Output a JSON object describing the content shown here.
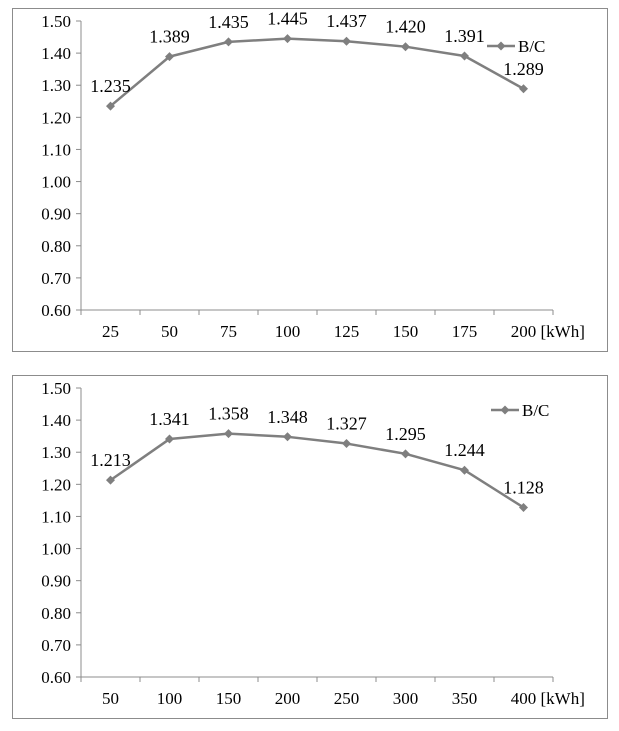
{
  "chart_data": [
    {
      "type": "line",
      "x": [
        "25",
        "50",
        "75",
        "100",
        "125",
        "150",
        "175",
        "200"
      ],
      "x_unit": "[kWh]",
      "series": [
        {
          "name": "B/C",
          "values": [
            1.235,
            1.389,
            1.435,
            1.445,
            1.437,
            1.42,
            1.391,
            1.289
          ],
          "labels": [
            "1.235",
            "1.389",
            "1.435",
            "1.445",
            "1.437",
            "1.420",
            "1.391",
            "1.289"
          ]
        }
      ],
      "y_ticks": [
        "0.60",
        "0.70",
        "0.80",
        "0.90",
        "1.00",
        "1.10",
        "1.20",
        "1.30",
        "1.40",
        "1.50"
      ],
      "ylim": [
        0.6,
        1.5
      ],
      "grid": false,
      "legend_position": "top-right",
      "line_color": "#7f7f7f"
    },
    {
      "type": "line",
      "x": [
        "50",
        "100",
        "150",
        "200",
        "250",
        "300",
        "350",
        "400"
      ],
      "x_unit": "[kWh]",
      "series": [
        {
          "name": "B/C",
          "values": [
            1.213,
            1.341,
            1.358,
            1.348,
            1.327,
            1.295,
            1.244,
            1.128
          ],
          "labels": [
            "1.213",
            "1.341",
            "1.358",
            "1.348",
            "1.327",
            "1.295",
            "1.244",
            "1.128"
          ]
        }
      ],
      "y_ticks": [
        "0.60",
        "0.70",
        "0.80",
        "0.90",
        "1.00",
        "1.10",
        "1.20",
        "1.30",
        "1.40",
        "1.50"
      ],
      "ylim": [
        0.6,
        1.5
      ],
      "grid": false,
      "legend_position": "top-right",
      "line_color": "#7f7f7f"
    }
  ]
}
